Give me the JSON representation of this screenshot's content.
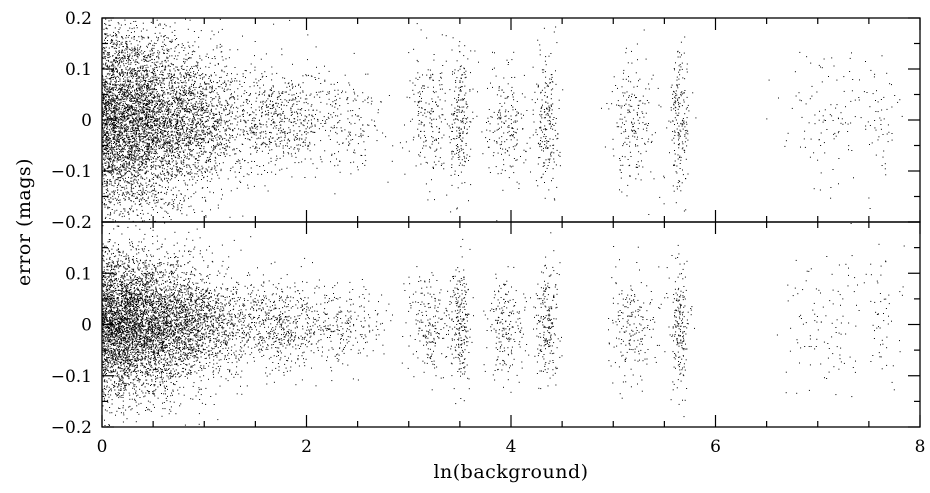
{
  "chart_data": {
    "type": "scatter",
    "title": "",
    "xlabel": "ln(background)",
    "ylabel": "error (mags)",
    "grid": false,
    "legend": "none",
    "xlim": [
      0,
      8
    ],
    "x_ticks": [
      0,
      2,
      4,
      6,
      8
    ],
    "x_tick_labels": [
      "0",
      "2",
      "4",
      "6",
      "8"
    ],
    "marker_color": "#000000",
    "panels": [
      {
        "position": "top",
        "ylim": [
          -0.2,
          0.2
        ],
        "y_ticks": [
          -0.2,
          -0.1,
          0,
          0.1,
          0.2
        ],
        "y_tick_labels": [
          "−0.2",
          "−0.1",
          "0",
          "0.1",
          "0.2"
        ],
        "y_tick_labels_shown": [
          "0.2",
          "0.1",
          "0",
          "−0.1",
          "−0.2"
        ],
        "clusters": [
          {
            "x_center": 0.2,
            "x_spread": 0.45,
            "y_spread": 0.09,
            "weight": 5.0
          },
          {
            "x_center": 0.9,
            "x_spread": 0.35,
            "y_spread": 0.06,
            "weight": 1.4
          },
          {
            "x_center": 1.75,
            "x_spread": 0.18,
            "y_spread": 0.05,
            "weight": 0.45
          },
          {
            "x_center": 2.3,
            "x_spread": 0.25,
            "y_spread": 0.05,
            "weight": 0.3
          },
          {
            "x_center": 3.2,
            "x_spread": 0.1,
            "y_spread": 0.06,
            "weight": 0.22
          },
          {
            "x_center": 3.5,
            "x_spread": 0.05,
            "y_spread": 0.07,
            "weight": 0.25
          },
          {
            "x_center": 3.95,
            "x_spread": 0.1,
            "y_spread": 0.06,
            "weight": 0.22
          },
          {
            "x_center": 4.35,
            "x_spread": 0.06,
            "y_spread": 0.07,
            "weight": 0.24
          },
          {
            "x_center": 5.2,
            "x_spread": 0.12,
            "y_spread": 0.065,
            "weight": 0.22
          },
          {
            "x_center": 5.65,
            "x_spread": 0.05,
            "y_spread": 0.07,
            "weight": 0.22
          },
          {
            "x_center": 7.1,
            "x_spread": 0.22,
            "y_spread": 0.07,
            "weight": 0.12
          },
          {
            "x_center": 7.6,
            "x_spread": 0.1,
            "y_spread": 0.07,
            "weight": 0.06
          }
        ]
      },
      {
        "position": "bottom",
        "ylim": [
          -0.2,
          0.2
        ],
        "y_ticks": [
          -0.2,
          -0.1,
          0,
          0.1,
          0.2
        ],
        "y_tick_labels": [
          "−0.2",
          "−0.1",
          "0",
          "0.1",
          "0.2"
        ],
        "y_tick_labels_shown": [
          "−0.2",
          "−0.1",
          "0",
          "0.1"
        ],
        "clusters": [
          {
            "x_center": 0.2,
            "x_spread": 0.45,
            "y_spread": 0.07,
            "weight": 5.0
          },
          {
            "x_center": 0.9,
            "x_spread": 0.35,
            "y_spread": 0.045,
            "weight": 1.4
          },
          {
            "x_center": 1.75,
            "x_spread": 0.2,
            "y_spread": 0.04,
            "weight": 0.5
          },
          {
            "x_center": 2.3,
            "x_spread": 0.25,
            "y_spread": 0.04,
            "weight": 0.3
          },
          {
            "x_center": 3.2,
            "x_spread": 0.1,
            "y_spread": 0.05,
            "weight": 0.22
          },
          {
            "x_center": 3.5,
            "x_spread": 0.05,
            "y_spread": 0.06,
            "weight": 0.25
          },
          {
            "x_center": 3.95,
            "x_spread": 0.1,
            "y_spread": 0.05,
            "weight": 0.22
          },
          {
            "x_center": 4.35,
            "x_spread": 0.06,
            "y_spread": 0.06,
            "weight": 0.24
          },
          {
            "x_center": 5.2,
            "x_spread": 0.12,
            "y_spread": 0.055,
            "weight": 0.22
          },
          {
            "x_center": 5.65,
            "x_spread": 0.05,
            "y_spread": 0.06,
            "weight": 0.22
          },
          {
            "x_center": 7.1,
            "x_spread": 0.22,
            "y_spread": 0.065,
            "weight": 0.12
          },
          {
            "x_center": 7.6,
            "x_spread": 0.1,
            "y_spread": 0.065,
            "weight": 0.06
          }
        ]
      }
    ]
  }
}
